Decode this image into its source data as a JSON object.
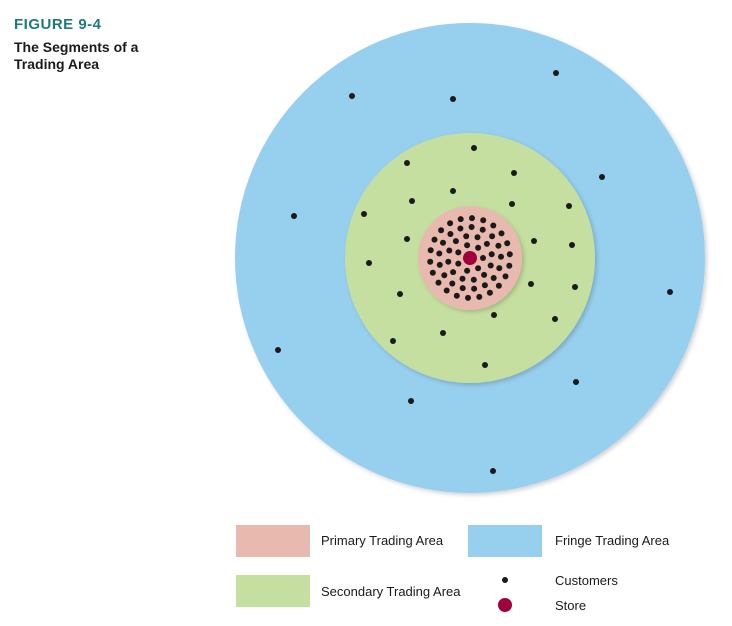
{
  "figure": {
    "label": "FIGURE 9-4",
    "title": "The Segments of a Trading Area"
  },
  "colors": {
    "label": "#1f7a7a",
    "fringe": "#97cfee",
    "secondary": "#c5dfa0",
    "primary": "#e8b9ae",
    "customer": "#1a1a1a",
    "store": "#a0003c"
  },
  "legend": {
    "primary": "Primary Trading Area",
    "fringe": "Fringe Trading Area",
    "secondary": "Secondary Trading Area",
    "customers": "Customers",
    "store": "Store"
  },
  "icons": {
    "customer": "black-dot-icon",
    "store": "maroon-dot-icon"
  }
}
